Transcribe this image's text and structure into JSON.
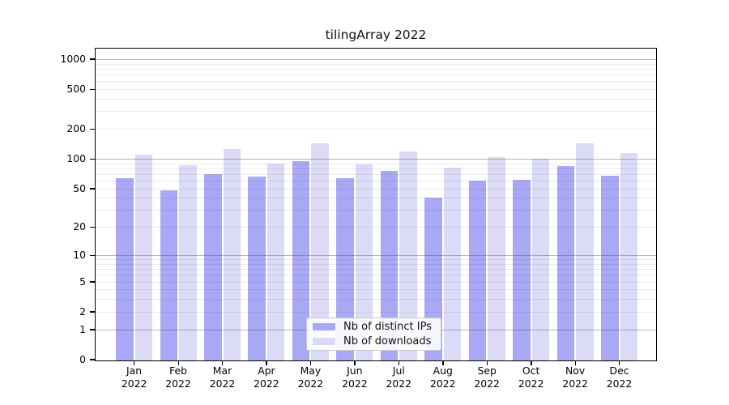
{
  "title": "tilingArray 2022",
  "legend": {
    "items": [
      {
        "label": "Nb of distinct IPs",
        "color": "#a8a8f5"
      },
      {
        "label": "Nb of downloads",
        "color": "#dbdbf8"
      }
    ]
  },
  "chart_data": {
    "type": "bar",
    "title": "tilingArray 2022",
    "categories": [
      "Jan 2022",
      "Feb 2022",
      "Mar 2022",
      "Apr 2022",
      "May 2022",
      "Jun 2022",
      "Jul 2022",
      "Aug 2022",
      "Sep 2022",
      "Oct 2022",
      "Nov 2022",
      "Dec 2022"
    ],
    "x_tick_months": [
      "Jan",
      "Feb",
      "Mar",
      "Apr",
      "May",
      "Jun",
      "Jul",
      "Aug",
      "Sep",
      "Oct",
      "Nov",
      "Dec"
    ],
    "x_tick_year": "2022",
    "series": [
      {
        "name": "Nb of distinct IPs",
        "color": "#a8a8f5",
        "values": [
          64,
          48,
          70,
          66,
          94,
          64,
          75,
          40,
          60,
          61,
          85,
          67
        ]
      },
      {
        "name": "Nb of downloads",
        "color": "#dbdbf8",
        "values": [
          110,
          86,
          125,
          89,
          142,
          87,
          119,
          81,
          104,
          100,
          144,
          114
        ]
      }
    ],
    "xlabel": "",
    "ylabel": "",
    "y_axis": {
      "scale": "log1p",
      "tick_values": [
        0,
        1,
        2,
        5,
        10,
        20,
        50,
        100,
        200,
        500,
        1000
      ],
      "major_gridlines": [
        1,
        10,
        100,
        1000
      ],
      "minor_gridlines": [
        2,
        3,
        4,
        5,
        6,
        7,
        8,
        9,
        20,
        30,
        40,
        50,
        60,
        70,
        80,
        90,
        200,
        300,
        400,
        500,
        600,
        700,
        800,
        900
      ],
      "ylim": [
        0,
        1270
      ]
    },
    "grid": true,
    "legend_position": "lower center"
  }
}
